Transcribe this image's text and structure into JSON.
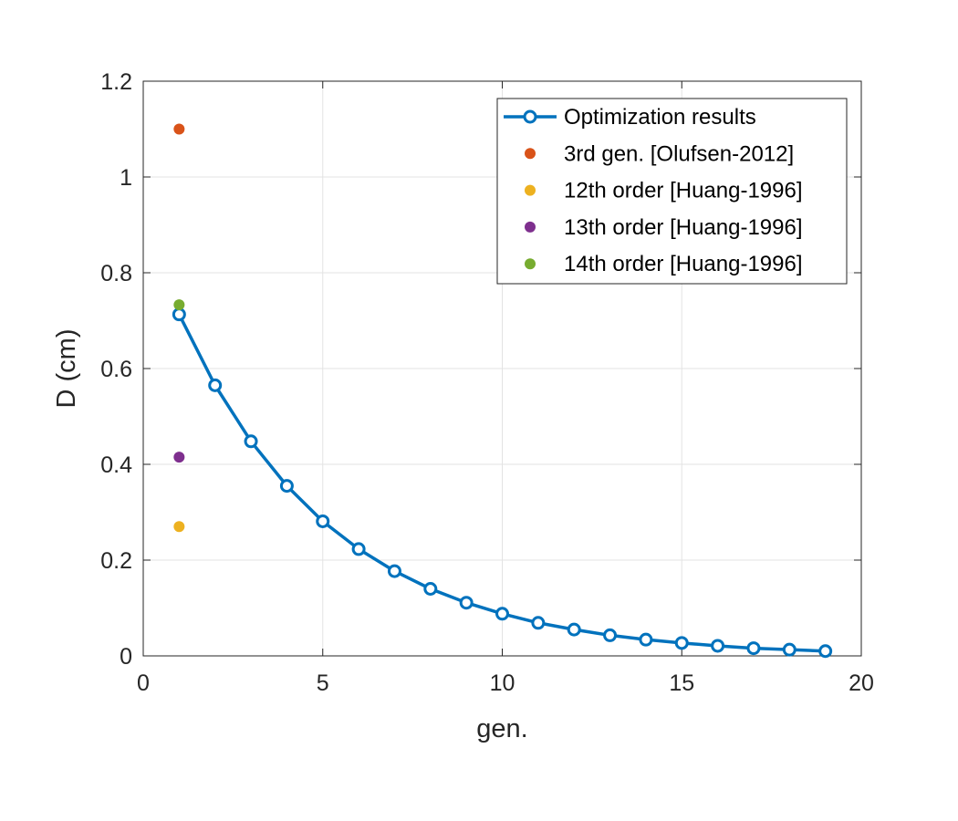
{
  "chart_data": {
    "type": "line",
    "xlabel": "gen.",
    "ylabel": "D (cm)",
    "xlim": [
      0,
      20
    ],
    "ylim": [
      0,
      1.2
    ],
    "x_ticks": [
      "0",
      "5",
      "10",
      "15",
      "20"
    ],
    "y_ticks": [
      "0",
      "0.2",
      "0.4",
      "0.6",
      "0.8",
      "1",
      "1.2"
    ],
    "grid": true,
    "legend_position": "top-right",
    "series": [
      {
        "name": "Optimization results",
        "style": "line-with-circles",
        "color": "#0072BD",
        "x": [
          1,
          2,
          3,
          4,
          5,
          6,
          7,
          8,
          9,
          10,
          11,
          12,
          13,
          14,
          15,
          16,
          17,
          18,
          19
        ],
        "y": [
          0.713,
          0.565,
          0.448,
          0.355,
          0.281,
          0.223,
          0.177,
          0.14,
          0.111,
          0.088,
          0.069,
          0.055,
          0.043,
          0.034,
          0.027,
          0.021,
          0.016,
          0.013,
          0.01
        ]
      },
      {
        "name": "3rd gen. [Olufsen-2012]",
        "style": "dot",
        "color": "#D95319",
        "x": [
          1
        ],
        "y": [
          1.1
        ]
      },
      {
        "name": "12th order [Huang-1996]",
        "style": "dot",
        "color": "#EDB120",
        "x": [
          1
        ],
        "y": [
          0.27
        ]
      },
      {
        "name": "13th order [Huang-1996]",
        "style": "dot",
        "color": "#7E2F8E",
        "x": [
          1
        ],
        "y": [
          0.415
        ]
      },
      {
        "name": "14th order [Huang-1996]",
        "style": "dot",
        "color": "#77AC30",
        "x": [
          1
        ],
        "y": [
          0.733
        ]
      }
    ]
  }
}
